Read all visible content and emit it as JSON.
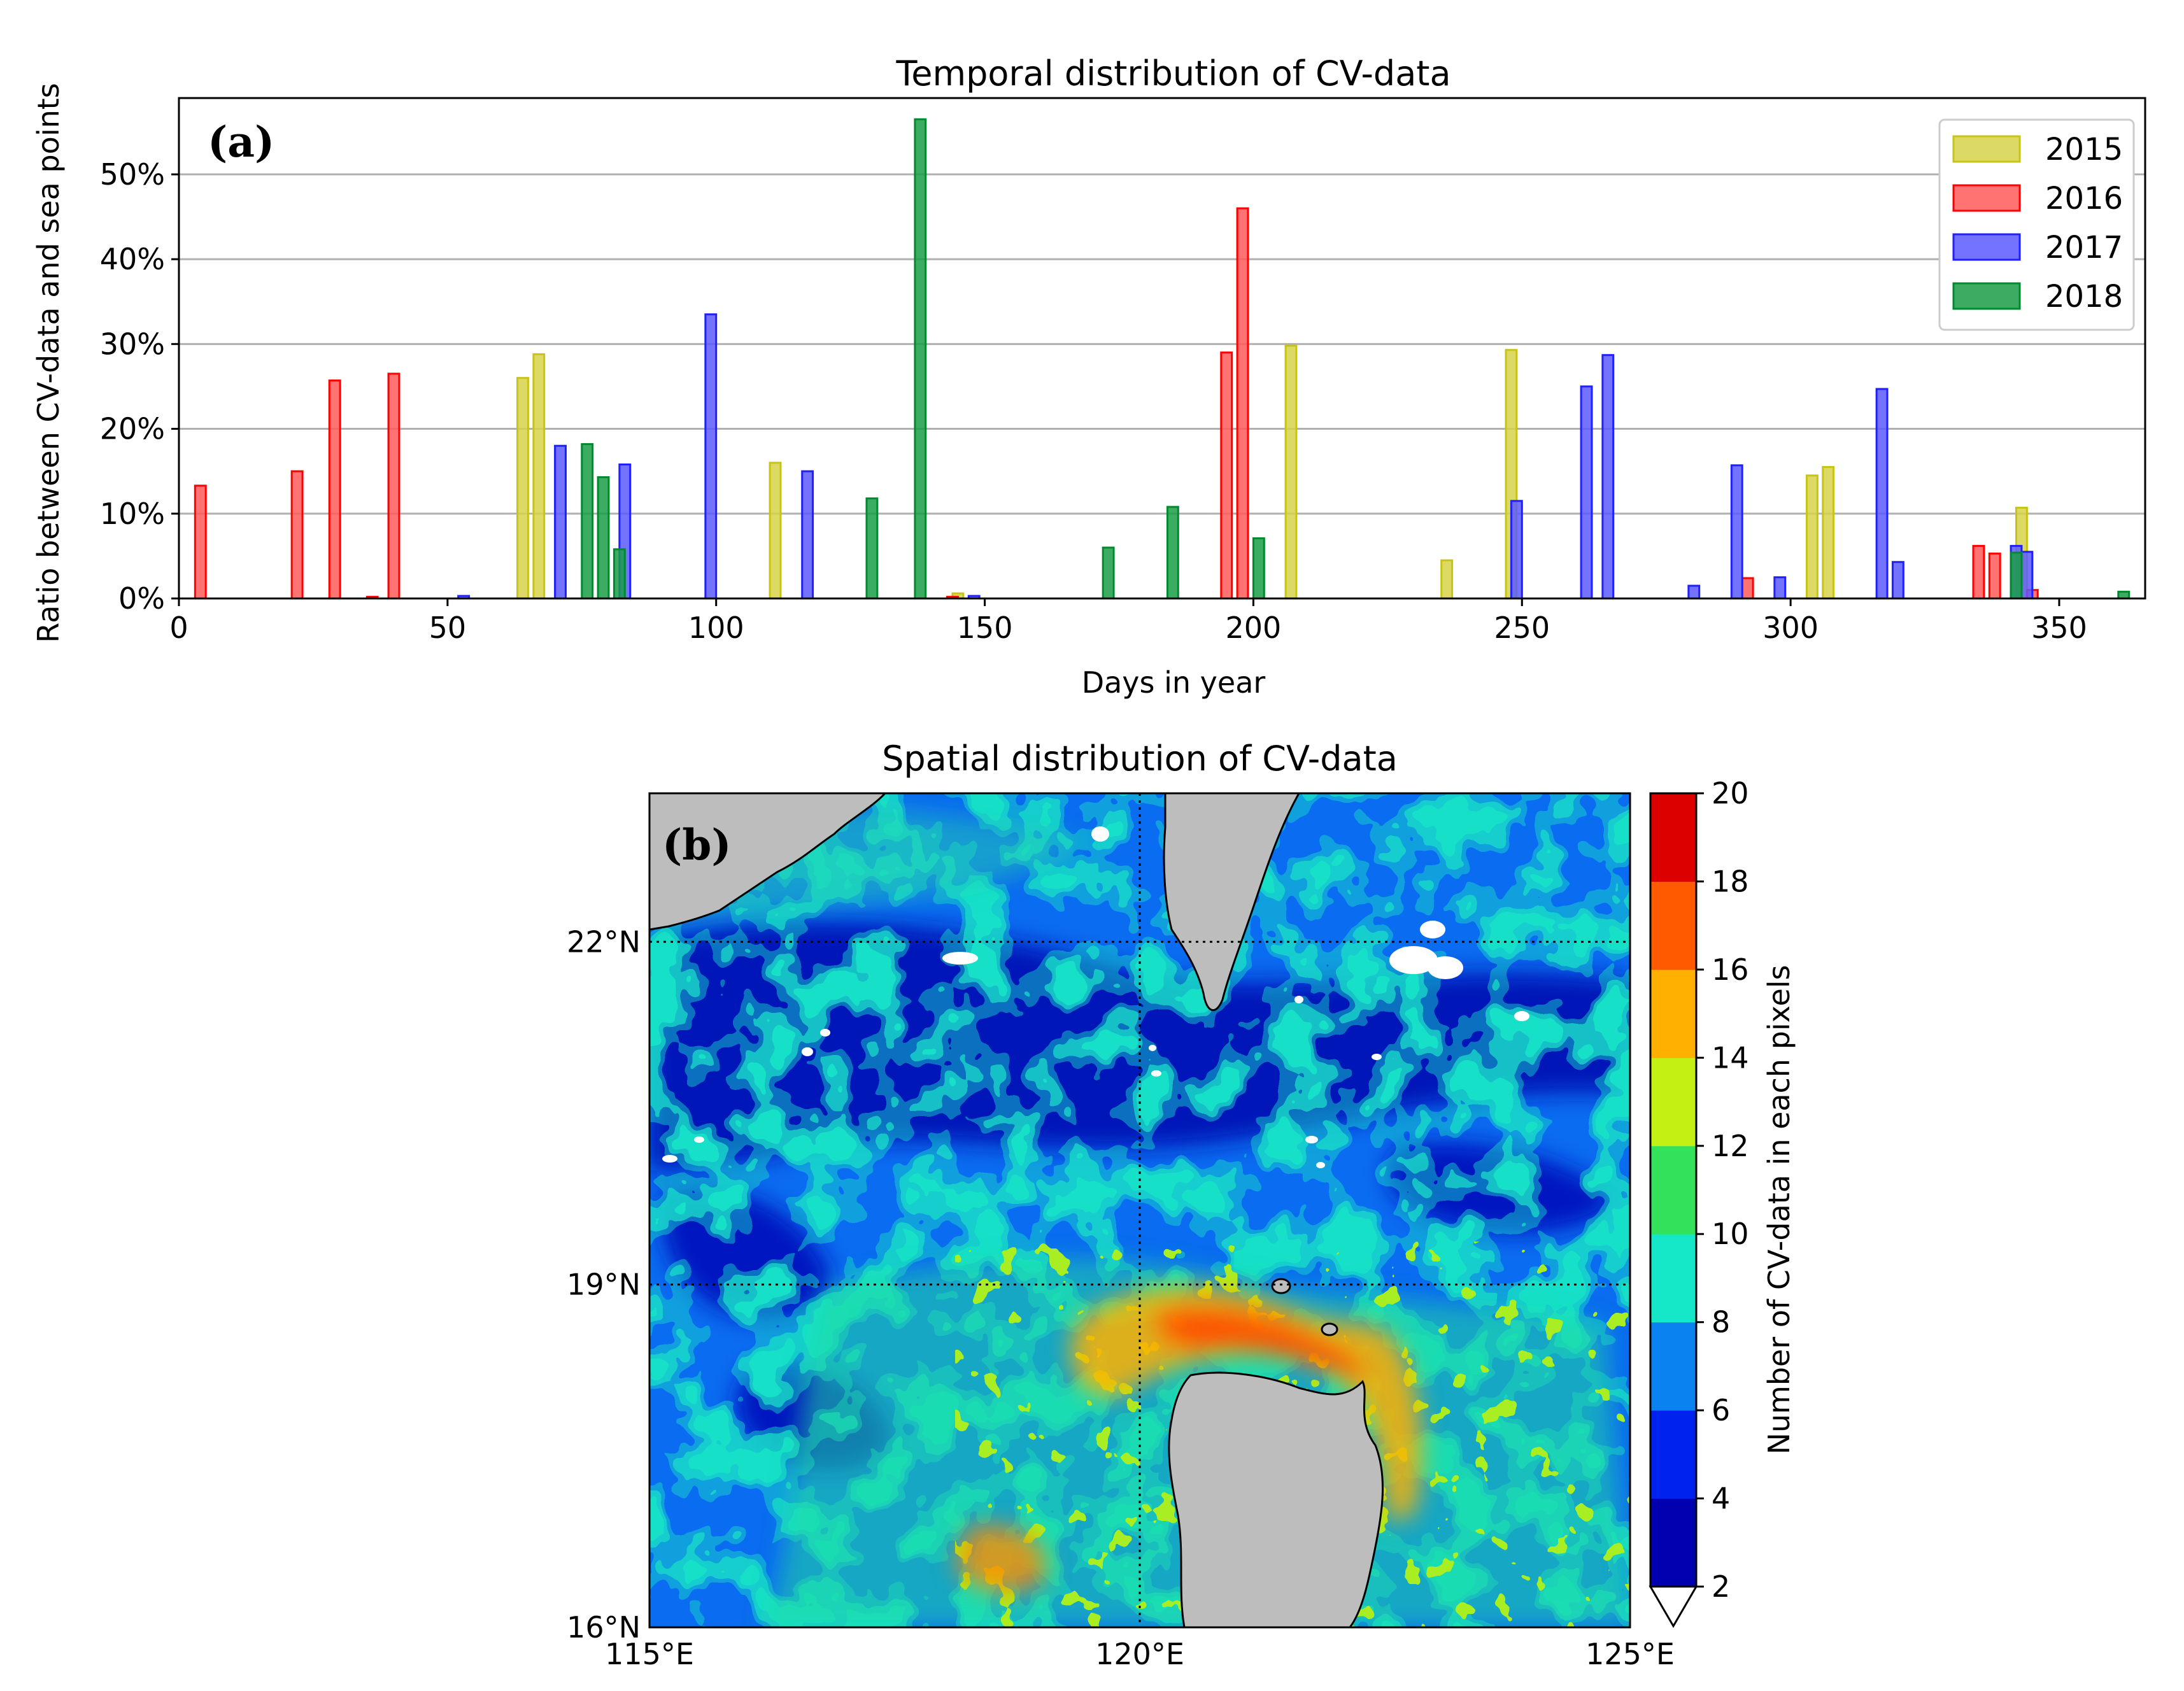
{
  "chart_data": [
    {
      "type": "bar",
      "panel_label": "(a)",
      "title": "Temporal distribution of CV-data",
      "xlabel": "Days in year",
      "ylabel": "Ratio between CV-data and sea points",
      "xlim": [
        0,
        366
      ],
      "ylim": [
        0,
        59
      ],
      "xticks": [
        0,
        50,
        100,
        150,
        200,
        250,
        300,
        350
      ],
      "yticks": [
        {
          "v": 0,
          "label": "0%"
        },
        {
          "v": 10,
          "label": "10%"
        },
        {
          "v": 20,
          "label": "20%"
        },
        {
          "v": 30,
          "label": "30%"
        },
        {
          "v": 40,
          "label": "40%"
        },
        {
          "v": 50,
          "label": "50%"
        }
      ],
      "grid": "horizontal",
      "legend_position": "top-right",
      "bar_width_days": 2,
      "series": [
        {
          "name": "2015",
          "color": "#c8c416",
          "fill": "#d6d24a",
          "points": [
            [
              64,
              26
            ],
            [
              67,
              28.8
            ],
            [
              111,
              16
            ],
            [
              145,
              0.6
            ],
            [
              207,
              29.8
            ],
            [
              236,
              4.5
            ],
            [
              248,
              29.3
            ],
            [
              304,
              14.5
            ],
            [
              307,
              15.5
            ],
            [
              343,
              10.7
            ]
          ]
        },
        {
          "name": "2016",
          "color": "#ff0000",
          "fill": "#ff5a5a",
          "points": [
            [
              4,
              13.3
            ],
            [
              22,
              15
            ],
            [
              29,
              25.7
            ],
            [
              36,
              0.2
            ],
            [
              40,
              26.5
            ],
            [
              144,
              0.2
            ],
            [
              195,
              29
            ],
            [
              198,
              46
            ],
            [
              292,
              2.4
            ],
            [
              335,
              6.2
            ],
            [
              338,
              5.3
            ],
            [
              345,
              1
            ]
          ]
        },
        {
          "name": "2017",
          "color": "#1f1fff",
          "fill": "#5a5aff",
          "points": [
            [
              53,
              0.3
            ],
            [
              71,
              18
            ],
            [
              83,
              15.8
            ],
            [
              99,
              33.5
            ],
            [
              117,
              15
            ],
            [
              148,
              0.3
            ],
            [
              249,
              11.5
            ],
            [
              262,
              25
            ],
            [
              266,
              28.7
            ],
            [
              282,
              1.5
            ],
            [
              290,
              15.7
            ],
            [
              298,
              2.5
            ],
            [
              317,
              24.7
            ],
            [
              320,
              4.3
            ],
            [
              342,
              6.2
            ],
            [
              344,
              5.5
            ]
          ]
        },
        {
          "name": "2018",
          "color": "#008a2e",
          "fill": "#1a9e48",
          "points": [
            [
              76,
              18.2
            ],
            [
              79,
              14.3
            ],
            [
              82,
              5.8
            ],
            [
              129,
              11.8
            ],
            [
              138,
              56.5
            ],
            [
              173,
              6
            ],
            [
              185,
              10.8
            ],
            [
              201,
              7.1
            ],
            [
              342,
              5.4
            ],
            [
              362,
              0.8
            ]
          ]
        }
      ]
    },
    {
      "type": "heatmap",
      "panel_label": "(b)",
      "title": "Spatial distribution of CV-data",
      "colorbar_label": "Number of CV-data in each pixels",
      "lon_range": [
        115,
        125
      ],
      "lat_range": [
        16,
        23.3
      ],
      "xtick_values": [
        115,
        120,
        125
      ],
      "xticks": [
        "115°E",
        "120°E",
        "125°E"
      ],
      "ytick_values": [
        16,
        19,
        22
      ],
      "yticks": [
        "16°N",
        "19°N",
        "22°N"
      ],
      "colorbar_range": [
        2,
        20
      ],
      "colorbar_ticks": [
        "2",
        "4",
        "6",
        "8",
        "10",
        "12",
        "14",
        "16",
        "18",
        "20"
      ],
      "colorbar_extend": "min",
      "colorbar_colors": [
        "#0000b0",
        "#0022ee",
        "#0a82f0",
        "#14e8c8",
        "#32e25a",
        "#c4f014",
        "#ffb000",
        "#ff5a00",
        "#dc0000"
      ],
      "land_color": "#bdbdbd",
      "gridlines": "dotted"
    }
  ]
}
